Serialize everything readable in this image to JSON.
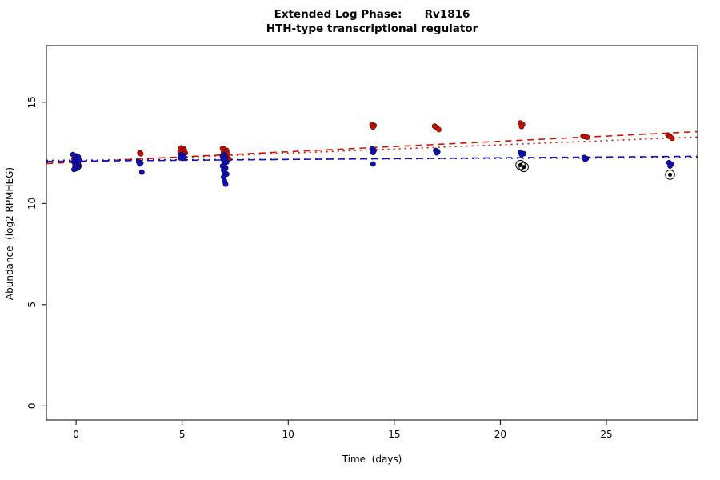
{
  "title": {
    "line1": "Extended Log Phase:      Rv1816",
    "line2": "HTH-type transcriptional regulator"
  },
  "axes": {
    "xlabel": "Time  (days)",
    "ylabel": "Abundance  (log2 RPMHEG)"
  },
  "chart_data": {
    "type": "scatter",
    "title": "Extended Log Phase: Rv1816 — HTH-type transcriptional regulator",
    "xlabel": "Time (days)",
    "ylabel": "Abundance (log2 RPMHEG)",
    "x_range": [
      -1.4,
      29.3
    ],
    "y_range": [
      -0.7,
      17.8
    ],
    "x_ticks": [
      0,
      5,
      10,
      15,
      20,
      25
    ],
    "y_ticks": [
      0,
      5,
      10,
      15
    ],
    "grid": false,
    "legend": "none",
    "series": [
      {
        "name": "red-points",
        "color": "#cc1100",
        "stroke": "#550000",
        "points": [
          [
            -0.1,
            12.2
          ],
          [
            0.05,
            12.15
          ],
          [
            0.1,
            12.05
          ],
          [
            0.0,
            11.95
          ],
          [
            0.15,
            11.85
          ],
          [
            -0.05,
            11.8
          ],
          [
            3.0,
            12.5
          ],
          [
            3.05,
            12.45
          ],
          [
            4.95,
            12.75
          ],
          [
            5.05,
            12.72
          ],
          [
            5.1,
            12.65
          ],
          [
            5.0,
            12.6
          ],
          [
            4.9,
            12.55
          ],
          [
            5.15,
            12.5
          ],
          [
            5.05,
            12.45
          ],
          [
            6.9,
            12.72
          ],
          [
            7.0,
            12.68
          ],
          [
            7.1,
            12.62
          ],
          [
            6.95,
            12.55
          ],
          [
            7.05,
            12.5
          ],
          [
            7.15,
            12.45
          ],
          [
            6.9,
            12.38
          ],
          [
            7.0,
            12.3
          ],
          [
            7.1,
            12.25
          ],
          [
            7.2,
            12.2
          ],
          [
            13.95,
            13.9
          ],
          [
            14.05,
            13.85
          ],
          [
            14.0,
            13.78
          ],
          [
            16.9,
            13.82
          ],
          [
            17.0,
            13.75
          ],
          [
            17.1,
            13.65
          ],
          [
            20.95,
            13.98
          ],
          [
            21.05,
            13.9
          ],
          [
            21.0,
            13.8
          ],
          [
            23.9,
            13.32
          ],
          [
            24.0,
            13.3
          ],
          [
            24.1,
            13.27
          ],
          [
            27.9,
            13.38
          ],
          [
            28.0,
            13.3
          ],
          [
            28.1,
            13.22
          ]
        ]
      },
      {
        "name": "blue-points",
        "color": "#1111bb",
        "stroke": "#000044",
        "points": [
          [
            -0.15,
            12.42
          ],
          [
            0.0,
            12.35
          ],
          [
            0.1,
            12.3
          ],
          [
            -0.05,
            12.25
          ],
          [
            0.05,
            12.2
          ],
          [
            0.15,
            12.12
          ],
          [
            -0.1,
            12.05
          ],
          [
            0.0,
            12.0
          ],
          [
            0.1,
            11.95
          ],
          [
            -0.05,
            11.9
          ],
          [
            0.05,
            11.85
          ],
          [
            0.1,
            11.78
          ],
          [
            0.0,
            11.72
          ],
          [
            -0.1,
            11.68
          ],
          [
            2.95,
            12.05
          ],
          [
            3.05,
            12.0
          ],
          [
            3.0,
            11.95
          ],
          [
            3.1,
            11.55
          ],
          [
            4.95,
            12.42
          ],
          [
            5.05,
            12.38
          ],
          [
            5.0,
            12.32
          ],
          [
            5.1,
            12.28
          ],
          [
            4.9,
            12.25
          ],
          [
            7.0,
            12.42
          ],
          [
            6.9,
            12.32
          ],
          [
            7.05,
            12.25
          ],
          [
            6.95,
            12.15
          ],
          [
            7.1,
            12.05
          ],
          [
            7.0,
            11.95
          ],
          [
            6.9,
            11.85
          ],
          [
            7.05,
            11.75
          ],
          [
            6.95,
            11.65
          ],
          [
            7.0,
            11.55
          ],
          [
            7.1,
            11.45
          ],
          [
            6.95,
            11.3
          ],
          [
            7.0,
            11.1
          ],
          [
            7.05,
            10.95
          ],
          [
            13.95,
            12.7
          ],
          [
            14.05,
            12.62
          ],
          [
            14.0,
            12.52
          ],
          [
            14.0,
            11.95
          ],
          [
            16.95,
            12.62
          ],
          [
            17.05,
            12.56
          ],
          [
            17.0,
            12.5
          ],
          [
            20.95,
            12.52
          ],
          [
            21.1,
            12.46
          ],
          [
            21.0,
            12.42
          ],
          [
            23.95,
            12.27
          ],
          [
            24.05,
            12.22
          ],
          [
            24.0,
            12.18
          ],
          [
            27.95,
            12.02
          ],
          [
            28.05,
            11.95
          ],
          [
            28.0,
            11.85
          ]
        ]
      },
      {
        "name": "outlier-points",
        "color": "#000000",
        "stroke": "#000000",
        "marker": "circled",
        "points": [
          [
            20.95,
            11.9
          ],
          [
            21.1,
            11.8
          ],
          [
            28.0,
            11.42
          ]
        ]
      }
    ],
    "trend_lines": [
      {
        "name": "red-dashed-fit",
        "color": "#cc1100",
        "style": "dashed",
        "from": [
          -1.4,
          11.97
        ],
        "to": [
          29.3,
          13.55
        ]
      },
      {
        "name": "red-dotted-fit",
        "color": "#cc1100",
        "style": "dotted",
        "from": [
          -1.4,
          12.02
        ],
        "to": [
          29.3,
          13.28
        ]
      },
      {
        "name": "blue-dashed-fit",
        "color": "#1111bb",
        "style": "dashed",
        "from": [
          -1.4,
          12.08
        ],
        "to": [
          29.3,
          12.33
        ]
      },
      {
        "name": "blue-dotted-fit",
        "color": "#1111bb",
        "style": "dotted",
        "from": [
          -1.4,
          12.13
        ],
        "to": [
          29.3,
          12.27
        ]
      }
    ]
  }
}
